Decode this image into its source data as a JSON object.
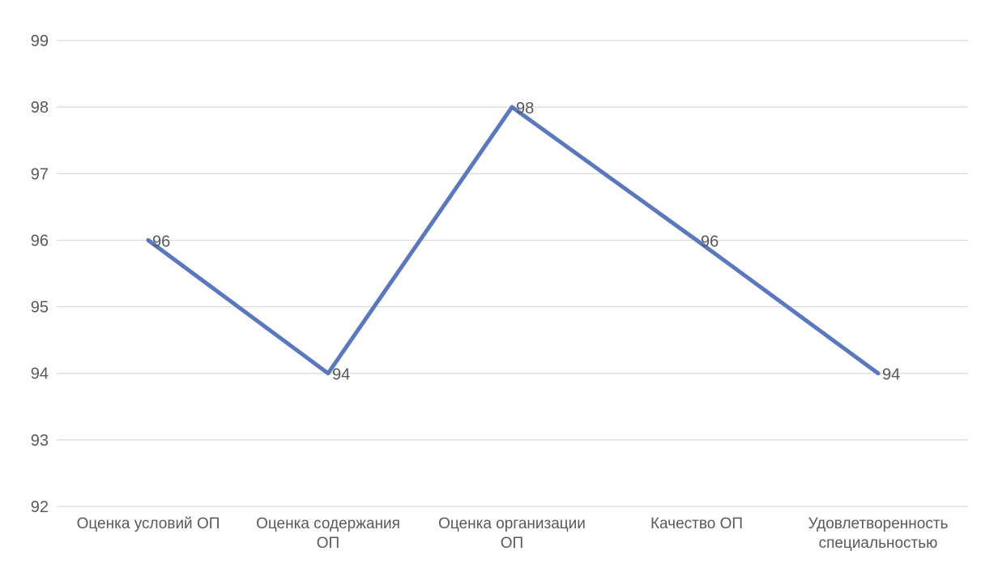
{
  "chart_data": {
    "type": "line",
    "categories": [
      [
        "Оценка условий ОП"
      ],
      [
        "Оценка содержания",
        "ОП"
      ],
      [
        "Оценка организации",
        "ОП"
      ],
      [
        "Качество ОП"
      ],
      [
        "Удовлетворенность",
        "специальностью"
      ]
    ],
    "series": [
      {
        "values": [
          96,
          94,
          98,
          96,
          94
        ],
        "color": "#5b78bd"
      }
    ],
    "data_labels": [
      "96",
      "94",
      "98",
      "96",
      "94"
    ],
    "yticks": [
      "92",
      "93",
      "94",
      "95",
      "96",
      "97",
      "98",
      "99"
    ],
    "ylim": [
      92,
      99
    ],
    "grid": true,
    "legend": "none",
    "title": "",
    "xlabel": "",
    "ylabel": ""
  }
}
